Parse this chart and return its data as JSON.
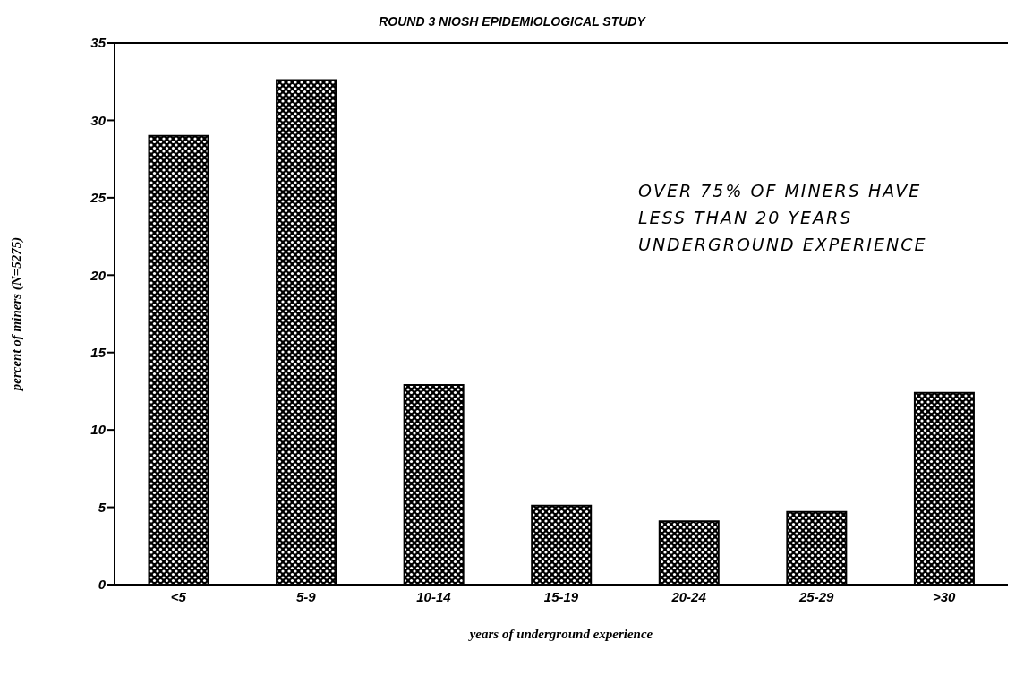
{
  "chart_data": {
    "type": "bar",
    "title": "ROUND 3 NIOSH EPIDEMIOLOGICAL STUDY",
    "xlabel": "years of underground experience",
    "ylabel": "percent of miners (N=5275)",
    "categories": [
      "<5",
      "5-9",
      "10-14",
      "15-19",
      "20-24",
      "25-29",
      ">30"
    ],
    "values": [
      29.0,
      32.6,
      12.9,
      5.1,
      4.1,
      4.7,
      12.4
    ],
    "color": "#000000",
    "ylim": [
      0,
      35
    ],
    "yticks": [
      0,
      5,
      10,
      15,
      20,
      25,
      30,
      35
    ],
    "grid": false,
    "annotations": [
      "OVER 75% OF MINERS HAVE LESS THAN 20 YEARS UNDERGROUND EXPERIENCE"
    ]
  }
}
